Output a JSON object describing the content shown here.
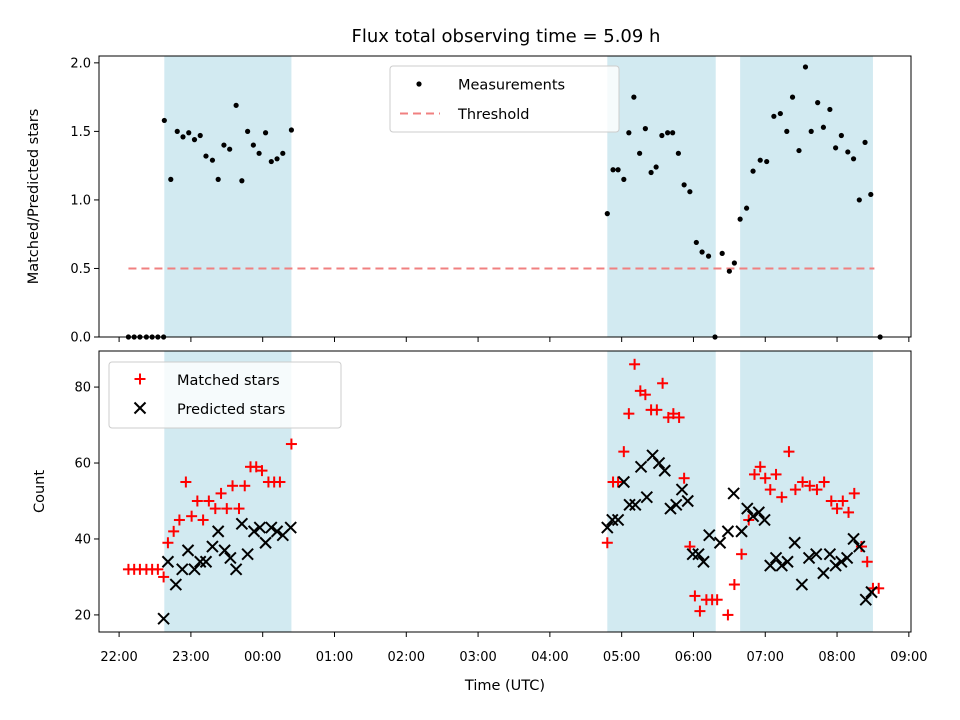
{
  "chart_data": {
    "title": "Flux total observing time = 5.09 h",
    "xlabel": "Time (UTC)",
    "x_unit": "hours UTC (values past 24 are after midnight)",
    "xlim": [
      21.72,
      33.03
    ],
    "xticks": [
      {
        "value": 22,
        "label": "22:00"
      },
      {
        "value": 23,
        "label": "23:00"
      },
      {
        "value": 24,
        "label": "00:00"
      },
      {
        "value": 25,
        "label": "01:00"
      },
      {
        "value": 26,
        "label": "02:00"
      },
      {
        "value": 27,
        "label": "03:00"
      },
      {
        "value": 28,
        "label": "04:00"
      },
      {
        "value": 29,
        "label": "05:00"
      },
      {
        "value": 30,
        "label": "06:00"
      },
      {
        "value": 31,
        "label": "07:00"
      },
      {
        "value": 32,
        "label": "08:00"
      },
      {
        "value": 33,
        "label": "09:00"
      }
    ],
    "shaded_intervals": [
      [
        22.63,
        24.4
      ],
      [
        28.8,
        30.31
      ],
      [
        30.65,
        32.5
      ]
    ],
    "shade_color": "#add8e6",
    "top_panel": {
      "type": "scatter",
      "ylabel": "Matched/Predicted stars",
      "ylim": [
        0,
        2.05
      ],
      "yticks": [
        "0.0",
        "0.5",
        "1.0",
        "1.5",
        "2.0"
      ],
      "legend": [
        {
          "label": "Measurements",
          "marker": "dot",
          "color": "#000000"
        },
        {
          "label": "Threshold",
          "marker": "dashed-line",
          "color": "#f08080"
        }
      ],
      "threshold": {
        "value": 0.5,
        "x_range": [
          22.13,
          32.52
        ],
        "color": "#f08080"
      },
      "series": [
        {
          "name": "Measurements",
          "color": "#000000",
          "points": [
            [
              22.13,
              0.0
            ],
            [
              22.21,
              0.0
            ],
            [
              22.29,
              0.0
            ],
            [
              22.38,
              0.0
            ],
            [
              22.46,
              0.0
            ],
            [
              22.54,
              0.0
            ],
            [
              22.62,
              0.0
            ],
            [
              22.63,
              1.58
            ],
            [
              22.72,
              1.15
            ],
            [
              22.81,
              1.5
            ],
            [
              22.89,
              1.46
            ],
            [
              22.97,
              1.49
            ],
            [
              23.05,
              1.44
            ],
            [
              23.13,
              1.47
            ],
            [
              23.21,
              1.32
            ],
            [
              23.3,
              1.29
            ],
            [
              23.38,
              1.15
            ],
            [
              23.46,
              1.4
            ],
            [
              23.54,
              1.37
            ],
            [
              23.63,
              1.69
            ],
            [
              23.71,
              1.14
            ],
            [
              23.79,
              1.5
            ],
            [
              23.87,
              1.4
            ],
            [
              23.95,
              1.34
            ],
            [
              24.04,
              1.49
            ],
            [
              24.12,
              1.28
            ],
            [
              24.2,
              1.3
            ],
            [
              24.28,
              1.34
            ],
            [
              24.4,
              1.51
            ],
            [
              28.8,
              0.9
            ],
            [
              28.88,
              1.22
            ],
            [
              28.95,
              1.22
            ],
            [
              29.03,
              1.15
            ],
            [
              29.1,
              1.49
            ],
            [
              29.17,
              1.75
            ],
            [
              29.25,
              1.34
            ],
            [
              29.33,
              1.52
            ],
            [
              29.41,
              1.2
            ],
            [
              29.48,
              1.24
            ],
            [
              29.56,
              1.47
            ],
            [
              29.64,
              1.49
            ],
            [
              29.71,
              1.49
            ],
            [
              29.79,
              1.34
            ],
            [
              29.87,
              1.11
            ],
            [
              29.95,
              1.06
            ],
            [
              30.04,
              0.69
            ],
            [
              30.12,
              0.62
            ],
            [
              30.21,
              0.59
            ],
            [
              30.3,
              0.0
            ],
            [
              30.4,
              0.61
            ],
            [
              30.5,
              0.48
            ],
            [
              30.57,
              0.54
            ],
            [
              30.65,
              0.86
            ],
            [
              30.74,
              0.94
            ],
            [
              30.83,
              1.21
            ],
            [
              30.93,
              1.29
            ],
            [
              31.02,
              1.28
            ],
            [
              31.12,
              1.61
            ],
            [
              31.21,
              1.63
            ],
            [
              31.3,
              1.5
            ],
            [
              31.38,
              1.75
            ],
            [
              31.47,
              1.36
            ],
            [
              31.56,
              1.97
            ],
            [
              31.64,
              1.5
            ],
            [
              31.73,
              1.71
            ],
            [
              31.81,
              1.53
            ],
            [
              31.9,
              1.66
            ],
            [
              31.98,
              1.38
            ],
            [
              32.06,
              1.47
            ],
            [
              32.15,
              1.35
            ],
            [
              32.23,
              1.3
            ],
            [
              32.31,
              1.0
            ],
            [
              32.39,
              1.42
            ],
            [
              32.47,
              1.04
            ],
            [
              32.6,
              0.0
            ]
          ]
        }
      ]
    },
    "bottom_panel": {
      "type": "scatter",
      "ylabel": "Count",
      "ylim": [
        15.5,
        89.5
      ],
      "yticks": [
        "20",
        "40",
        "60",
        "80"
      ],
      "legend": [
        {
          "label": "Matched stars",
          "marker": "plus",
          "color": "#ff0000"
        },
        {
          "label": "Predicted stars",
          "marker": "x",
          "color": "#000000"
        }
      ],
      "series": [
        {
          "name": "Matched stars",
          "marker": "plus",
          "color": "#ff0000",
          "points": [
            [
              22.13,
              32
            ],
            [
              22.21,
              32
            ],
            [
              22.29,
              32
            ],
            [
              22.38,
              32
            ],
            [
              22.46,
              32
            ],
            [
              22.54,
              32
            ],
            [
              22.62,
              30
            ],
            [
              22.68,
              39
            ],
            [
              22.76,
              42
            ],
            [
              22.84,
              45
            ],
            [
              22.93,
              55
            ],
            [
              23.01,
              46
            ],
            [
              23.09,
              50
            ],
            [
              23.17,
              45
            ],
            [
              23.25,
              50
            ],
            [
              23.34,
              48
            ],
            [
              23.42,
              52
            ],
            [
              23.5,
              48
            ],
            [
              23.58,
              54
            ],
            [
              23.67,
              48
            ],
            [
              23.75,
              54
            ],
            [
              23.83,
              59
            ],
            [
              23.91,
              59
            ],
            [
              23.99,
              58
            ],
            [
              24.08,
              55
            ],
            [
              24.16,
              55
            ],
            [
              24.24,
              55
            ],
            [
              24.4,
              65
            ],
            [
              28.8,
              39
            ],
            [
              28.88,
              55
            ],
            [
              28.95,
              55
            ],
            [
              29.03,
              63
            ],
            [
              29.1,
              73
            ],
            [
              29.18,
              86
            ],
            [
              29.26,
              79
            ],
            [
              29.33,
              78
            ],
            [
              29.41,
              74
            ],
            [
              29.49,
              74
            ],
            [
              29.57,
              81
            ],
            [
              29.65,
              72
            ],
            [
              29.72,
              73
            ],
            [
              29.8,
              72
            ],
            [
              29.87,
              56
            ],
            [
              29.95,
              38
            ],
            [
              30.02,
              25
            ],
            [
              30.09,
              21
            ],
            [
              30.18,
              24
            ],
            [
              30.26,
              24
            ],
            [
              30.33,
              24
            ],
            [
              30.48,
              20
            ],
            [
              30.57,
              28
            ],
            [
              30.67,
              36
            ],
            [
              30.77,
              45
            ],
            [
              30.85,
              57
            ],
            [
              30.93,
              59
            ],
            [
              31.0,
              56
            ],
            [
              31.07,
              53
            ],
            [
              31.15,
              57
            ],
            [
              31.23,
              51
            ],
            [
              31.33,
              63
            ],
            [
              31.42,
              53
            ],
            [
              31.52,
              55
            ],
            [
              31.62,
              54
            ],
            [
              31.72,
              53
            ],
            [
              31.82,
              55
            ],
            [
              31.92,
              50
            ],
            [
              32.0,
              48
            ],
            [
              32.08,
              50
            ],
            [
              32.16,
              47
            ],
            [
              32.24,
              52
            ],
            [
              32.34,
              38
            ],
            [
              32.42,
              34
            ],
            [
              32.5,
              27
            ],
            [
              32.58,
              27
            ]
          ]
        },
        {
          "name": "Predicted stars",
          "marker": "x",
          "color": "#000000",
          "points": [
            [
              22.62,
              19
            ],
            [
              22.68,
              34
            ],
            [
              22.79,
              28
            ],
            [
              22.88,
              32
            ],
            [
              22.96,
              37
            ],
            [
              23.05,
              32
            ],
            [
              23.13,
              34
            ],
            [
              23.21,
              34
            ],
            [
              23.3,
              38
            ],
            [
              23.38,
              42
            ],
            [
              23.47,
              37
            ],
            [
              23.55,
              35
            ],
            [
              23.63,
              32
            ],
            [
              23.71,
              44
            ],
            [
              23.79,
              36
            ],
            [
              23.88,
              42
            ],
            [
              23.96,
              43
            ],
            [
              24.04,
              39
            ],
            [
              24.12,
              43
            ],
            [
              24.2,
              42
            ],
            [
              24.28,
              41
            ],
            [
              24.39,
              43
            ],
            [
              28.8,
              43
            ],
            [
              28.87,
              45
            ],
            [
              28.95,
              45
            ],
            [
              29.03,
              55
            ],
            [
              29.11,
              49
            ],
            [
              29.19,
              49
            ],
            [
              29.27,
              59
            ],
            [
              29.35,
              51
            ],
            [
              29.43,
              62
            ],
            [
              29.52,
              60
            ],
            [
              29.6,
              58
            ],
            [
              29.68,
              48
            ],
            [
              29.76,
              49
            ],
            [
              29.84,
              53
            ],
            [
              29.92,
              50
            ],
            [
              29.99,
              36
            ],
            [
              30.07,
              36
            ],
            [
              30.14,
              34
            ],
            [
              30.22,
              41
            ],
            [
              30.37,
              39
            ],
            [
              30.48,
              42
            ],
            [
              30.56,
              52
            ],
            [
              30.67,
              42
            ],
            [
              30.75,
              48
            ],
            [
              30.83,
              46
            ],
            [
              30.91,
              47
            ],
            [
              30.99,
              45
            ],
            [
              31.07,
              33
            ],
            [
              31.15,
              35
            ],
            [
              31.23,
              33
            ],
            [
              31.31,
              34
            ],
            [
              31.41,
              39
            ],
            [
              31.51,
              28
            ],
            [
              31.61,
              35
            ],
            [
              31.71,
              36
            ],
            [
              31.81,
              31
            ],
            [
              31.9,
              36
            ],
            [
              31.98,
              33
            ],
            [
              32.06,
              34
            ],
            [
              32.14,
              35
            ],
            [
              32.23,
              40
            ],
            [
              32.31,
              38
            ],
            [
              32.4,
              24
            ],
            [
              32.48,
              26
            ]
          ]
        }
      ]
    }
  }
}
